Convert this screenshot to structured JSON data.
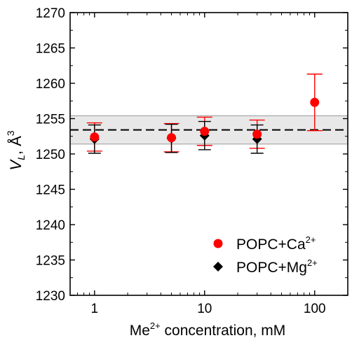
{
  "chart_data": {
    "type": "scatter",
    "xscale": "log",
    "xlim": [
      0.6,
      200
    ],
    "ylim": [
      1230,
      1270
    ],
    "xticks": [
      1,
      10,
      100
    ],
    "xtick_labels": [
      "1",
      "10",
      "100"
    ],
    "yticks": [
      1230,
      1235,
      1240,
      1245,
      1250,
      1255,
      1260,
      1265,
      1270
    ],
    "ytick_labels": [
      "1230",
      "1235",
      "1240",
      "1245",
      "1250",
      "1255",
      "1260",
      "1265",
      "1270"
    ],
    "xlabel_base": "Me",
    "xlabel_sup": "2+",
    "xlabel_rest": " concentration, mM",
    "ylabel_main": "V",
    "ylabel_sub": "L",
    "ylabel_rest": ", Å",
    "ylabel_sup": "3",
    "grid": false,
    "legend_position": "bottom-right",
    "reference": {
      "mean": 1253.4,
      "band": [
        1251.4,
        1255.4
      ]
    },
    "series": [
      {
        "name_base": "POPC+Ca",
        "name_sup": "2+",
        "marker": "circle",
        "color": "#ff0000",
        "x": [
          1,
          5,
          10,
          30,
          100
        ],
        "y": [
          1252.4,
          1252.3,
          1253.2,
          1252.8,
          1257.3
        ],
        "err": [
          2.0,
          2.0,
          2.0,
          2.0,
          4.0
        ]
      },
      {
        "name_base": "POPC+Mg",
        "name_sup": "2+",
        "marker": "diamond",
        "color": "#000000",
        "x": [
          1,
          5,
          10,
          30
        ],
        "y": [
          1252.1,
          1252.2,
          1252.6,
          1252.1
        ],
        "err": [
          2.0,
          2.0,
          2.0,
          2.0
        ]
      }
    ]
  }
}
